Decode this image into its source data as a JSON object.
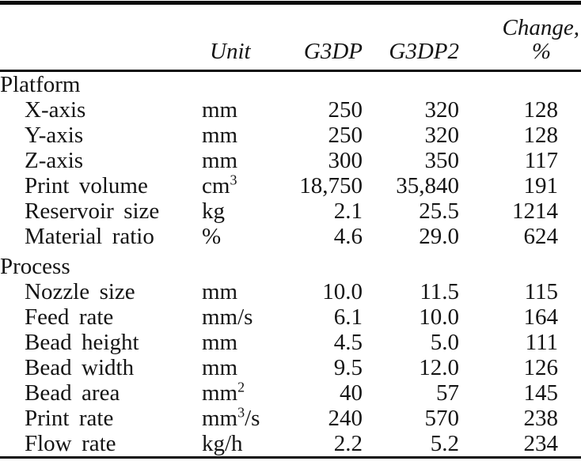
{
  "table": {
    "header": {
      "unit": "Unit",
      "g3dp": "G3DP",
      "g3dp2": "G3DP2",
      "change_line1": "Change,",
      "change_line2": "%"
    },
    "sections": [
      {
        "title": "Platform",
        "rows": [
          {
            "label": "X-axis",
            "unit_base": "mm",
            "unit_sup": "",
            "unit_rest": "",
            "g3dp": "250",
            "g3dp2": "320",
            "change": "128"
          },
          {
            "label": "Y-axis",
            "unit_base": "mm",
            "unit_sup": "",
            "unit_rest": "",
            "g3dp": "250",
            "g3dp2": "320",
            "change": "128"
          },
          {
            "label": "Z-axis",
            "unit_base": "mm",
            "unit_sup": "",
            "unit_rest": "",
            "g3dp": "300",
            "g3dp2": "350",
            "change": "117"
          },
          {
            "label": "Print volume",
            "unit_base": "cm",
            "unit_sup": "3",
            "unit_rest": "",
            "g3dp": "18,750",
            "g3dp2": "35,840",
            "change": "191"
          },
          {
            "label": "Reservoir size",
            "unit_base": "kg",
            "unit_sup": "",
            "unit_rest": "",
            "g3dp": "2.1",
            "g3dp2": "25.5",
            "change": "1214"
          },
          {
            "label": "Material ratio",
            "unit_base": "%",
            "unit_sup": "",
            "unit_rest": "",
            "g3dp": "4.6",
            "g3dp2": "29.0",
            "change": "624"
          }
        ]
      },
      {
        "title": "Process",
        "rows": [
          {
            "label": "Nozzle size",
            "unit_base": "mm",
            "unit_sup": "",
            "unit_rest": "",
            "g3dp": "10.0",
            "g3dp2": "11.5",
            "change": "115"
          },
          {
            "label": "Feed rate",
            "unit_base": "mm/s",
            "unit_sup": "",
            "unit_rest": "",
            "g3dp": "6.1",
            "g3dp2": "10.0",
            "change": "164"
          },
          {
            "label": "Bead height",
            "unit_base": "mm",
            "unit_sup": "",
            "unit_rest": "",
            "g3dp": "4.5",
            "g3dp2": "5.0",
            "change": "111"
          },
          {
            "label": "Bead width",
            "unit_base": "mm",
            "unit_sup": "",
            "unit_rest": "",
            "g3dp": "9.5",
            "g3dp2": "12.0",
            "change": "126"
          },
          {
            "label": "Bead area",
            "unit_base": "mm",
            "unit_sup": "2",
            "unit_rest": "",
            "g3dp": "40",
            "g3dp2": "57",
            "change": "145"
          },
          {
            "label": "Print rate",
            "unit_base": "mm",
            "unit_sup": "3",
            "unit_rest": "/s",
            "g3dp": "240",
            "g3dp2": "570",
            "change": "238"
          },
          {
            "label": "Flow rate",
            "unit_base": "kg/h",
            "unit_sup": "",
            "unit_rest": "",
            "g3dp": "2.2",
            "g3dp2": "5.2",
            "change": "234"
          }
        ]
      }
    ]
  }
}
